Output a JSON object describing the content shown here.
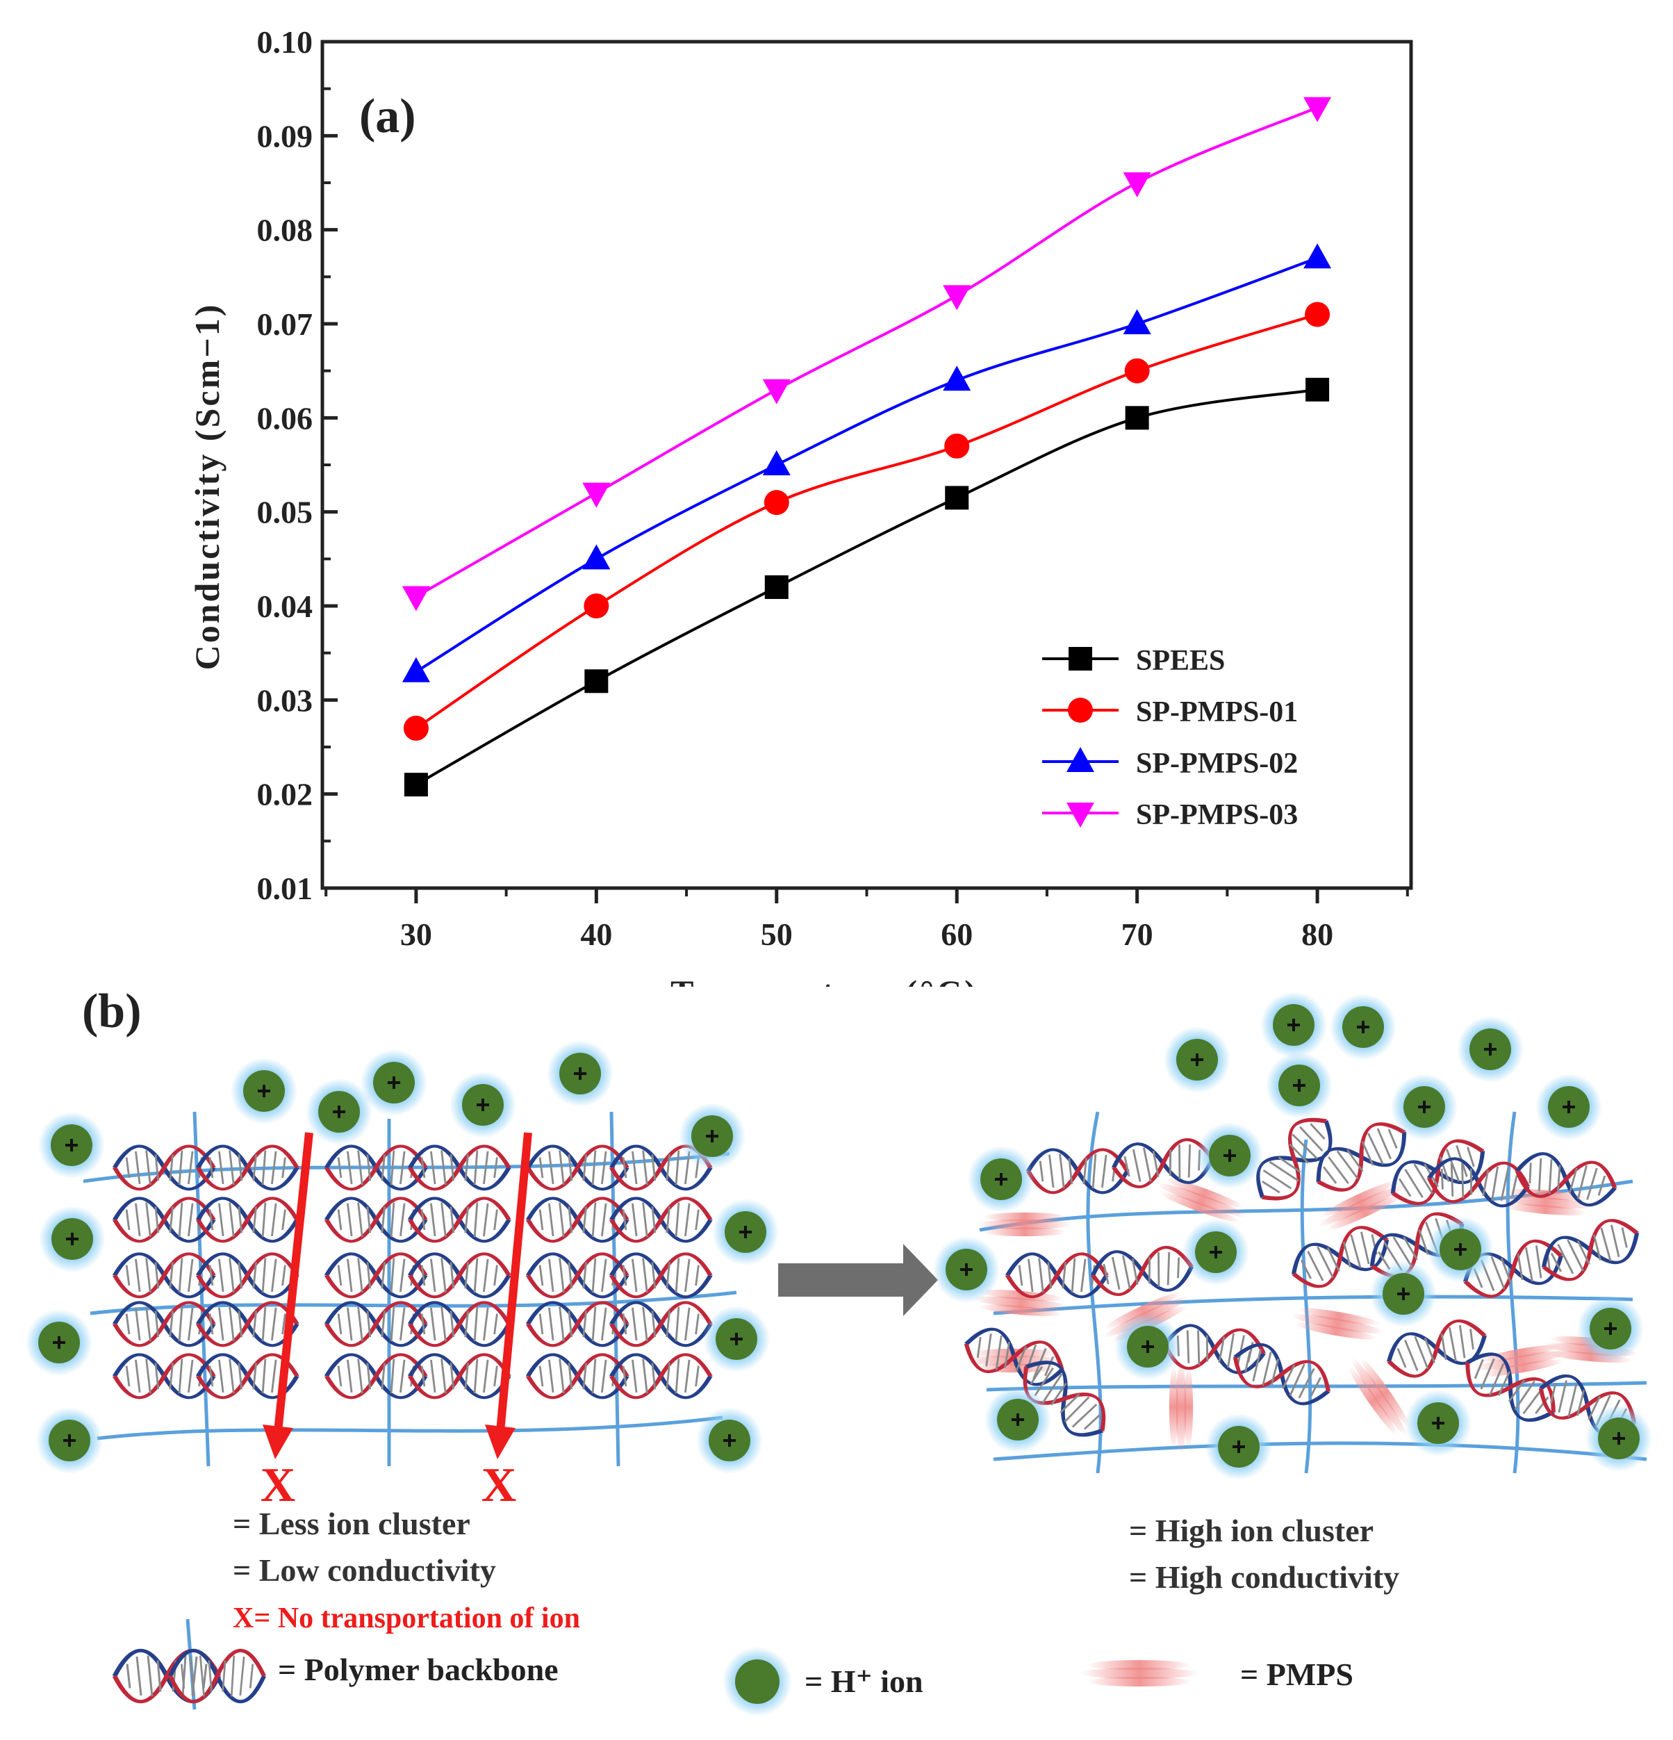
{
  "chart_data": {
    "type": "line",
    "panel_label": "(a)",
    "xlabel": "Temperature (°C)",
    "ylabel": "Conductivity (Scm−1)",
    "x": [
      30,
      40,
      50,
      60,
      70,
      80
    ],
    "xticks": [
      "30",
      "40",
      "50",
      "60",
      "70",
      "80"
    ],
    "yticks": [
      "0.01",
      "0.02",
      "0.03",
      "0.04",
      "0.05",
      "0.06",
      "0.07",
      "0.08",
      "0.09",
      "0.10"
    ],
    "xlim": [
      24.8,
      85.2
    ],
    "ylim": [
      0.01,
      0.1
    ],
    "legend_position": "bottom-right",
    "series": [
      {
        "name": "SPEES",
        "color": "#000000",
        "marker": "square",
        "values": [
          0.021,
          0.032,
          0.042,
          0.0515,
          0.06,
          0.063
        ]
      },
      {
        "name": "SP-PMPS-01",
        "color": "#ff0000",
        "marker": "circle",
        "values": [
          0.027,
          0.04,
          0.051,
          0.057,
          0.065,
          0.071
        ]
      },
      {
        "name": "SP-PMPS-02",
        "color": "#0000ff",
        "marker": "triangle-up",
        "values": [
          0.033,
          0.045,
          0.055,
          0.064,
          0.07,
          0.077
        ]
      },
      {
        "name": "SP-PMPS-03",
        "color": "#ff00ff",
        "marker": "triangle-down",
        "values": [
          0.041,
          0.052,
          0.063,
          0.073,
          0.085,
          0.093
        ]
      }
    ]
  },
  "diagram": {
    "panel_label": "(b)",
    "left_cross_1": "X",
    "left_cross_2": "X",
    "left_caption_1": "= Less ion cluster",
    "left_caption_2": "= Low conductivity",
    "left_caption_3": "X= No transportation of ion",
    "right_caption_1": "= High ion cluster",
    "right_caption_2": "= High conductivity",
    "legend_backbone": "= Polymer backbone",
    "legend_ion": "= H⁺ ion",
    "legend_pmps": "= PMPS",
    "colors": {
      "ion": "#4a7a2c",
      "ion_glow": "#8fd0f5",
      "backbone": "#5aa0dc",
      "helix_red": "#c0283a",
      "helix_blue": "#25408a",
      "arrow": "#ee1c1c",
      "pmps": "#f08a8a"
    }
  }
}
